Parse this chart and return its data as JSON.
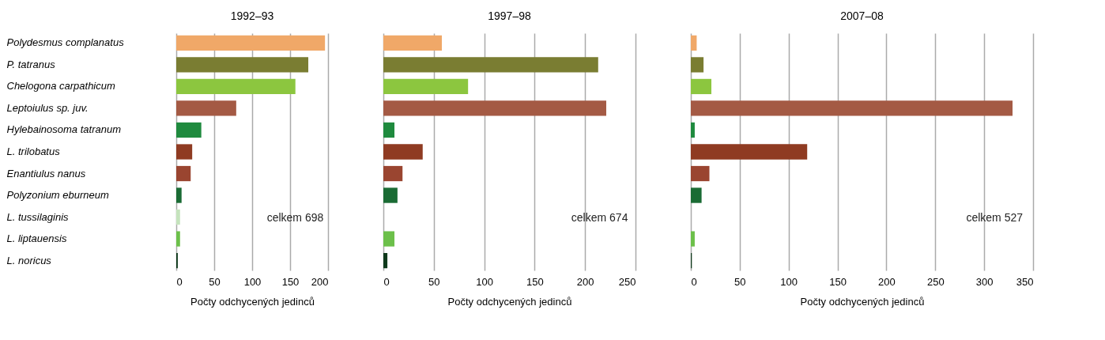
{
  "chart_data": [
    {
      "type": "bar",
      "orientation": "horizontal",
      "title": "1992–93",
      "xlabel": "Počty odchycených jedinců",
      "categories": [
        "Polydesmus complanatus",
        "P. tatranus",
        "Chelogona carpathicum",
        "Leptoiulus sp. juv.",
        "Hylebainosoma tatranum",
        "L. trilobatus",
        "Enantiulus nanus",
        "Polyzonium eburneum",
        "L. tussilaginis",
        "L. liptauensis",
        "L. noricus"
      ],
      "values": [
        196,
        174,
        157,
        79,
        33,
        21,
        19,
        7,
        5,
        5,
        2
      ],
      "colors": [
        "#f0a868",
        "#7a7d32",
        "#8cc63f",
        "#a45a44",
        "#1f8a3e",
        "#8f3b22",
        "#9a4530",
        "#1a6b34",
        "#c5e3bd",
        "#6cc04a",
        "#0f3a1c"
      ],
      "xlim": [
        0,
        200
      ],
      "xticks": [
        0,
        50,
        100,
        150,
        200
      ],
      "grid": "x",
      "annotations": [
        "celkem 698"
      ]
    },
    {
      "type": "bar",
      "orientation": "horizontal",
      "title": "1997–98",
      "xlabel": "Počty odchycených jedinců",
      "categories": [
        null,
        null,
        null,
        null,
        null,
        null,
        null,
        null,
        null,
        null,
        null
      ],
      "values": [
        58,
        213,
        84,
        221,
        11,
        39,
        19,
        14,
        0,
        11,
        4
      ],
      "colors": [
        "#f0a868",
        "#7a7d32",
        "#8cc63f",
        "#a45a44",
        "#1f8a3e",
        "#8f3b22",
        "#9a4530",
        "#1a6b34",
        "#c5e3bd",
        "#6cc04a",
        "#0f3a1c"
      ],
      "xlim": [
        0,
        250
      ],
      "xticks": [
        0,
        50,
        100,
        150,
        200,
        250
      ],
      "grid": "x",
      "annotations": [
        "celkem 674"
      ]
    },
    {
      "type": "bar",
      "orientation": "horizontal",
      "title": "2007–08",
      "xlabel": "Počty odchycených jedinců",
      "categories": [
        null,
        null,
        null,
        null,
        null,
        null,
        null,
        null,
        null,
        null,
        null
      ],
      "values": [
        6,
        13,
        21,
        329,
        4,
        119,
        19,
        11,
        0,
        4,
        1
      ],
      "colors": [
        "#f0a868",
        "#7a7d32",
        "#8cc63f",
        "#a45a44",
        "#1f8a3e",
        "#8f3b22",
        "#9a4530",
        "#1a6b34",
        "#c5e3bd",
        "#6cc04a",
        "#0f3a1c"
      ],
      "xlim": [
        0,
        350
      ],
      "xticks": [
        0,
        50,
        100,
        150,
        200,
        250,
        300,
        350
      ],
      "grid": "x",
      "annotations": [
        "celkem 527"
      ]
    }
  ]
}
